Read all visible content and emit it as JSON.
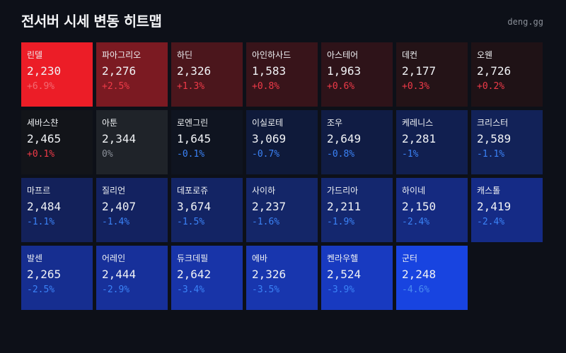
{
  "header": {
    "title": "전서버 시세 변동 히트맵",
    "brand": "deng.gg"
  },
  "chart_data": {
    "type": "heatmap",
    "title": "전서버 시세 변동 히트맵",
    "columns": 7,
    "colors": {
      "up": "#ef3a48",
      "down": "#3b82f6",
      "flat": "#8a8f98"
    },
    "items": [
      {
        "name": "린델",
        "value": "2,230",
        "change": "+6.9%",
        "pct": 6.9,
        "bg": "#ec1d27",
        "pctColor": "#f26a72"
      },
      {
        "name": "파아그리오",
        "value": "2,276",
        "change": "+2.5%",
        "pct": 2.5,
        "bg": "#7b1a22",
        "pctColor": "#ef3a48"
      },
      {
        "name": "하딘",
        "value": "2,326",
        "change": "+1.3%",
        "pct": 1.3,
        "bg": "#4b161c",
        "pctColor": "#ef3a48"
      },
      {
        "name": "아인하사드",
        "value": "1,583",
        "change": "+0.8%",
        "pct": 0.8,
        "bg": "#38141a",
        "pctColor": "#ef3a48"
      },
      {
        "name": "아스테어",
        "value": "1,963",
        "change": "+0.6%",
        "pct": 0.6,
        "bg": "#2e1319",
        "pctColor": "#ef3a48"
      },
      {
        "name": "데컨",
        "value": "2,177",
        "change": "+0.3%",
        "pct": 0.3,
        "bg": "#241317",
        "pctColor": "#ef3a48"
      },
      {
        "name": "오웬",
        "value": "2,726",
        "change": "+0.2%",
        "pct": 0.2,
        "bg": "#1f1216",
        "pctColor": "#ef3a48"
      },
      {
        "name": "세바스챤",
        "value": "2,465",
        "change": "+0.1%",
        "pct": 0.1,
        "bg": "#121419",
        "pctColor": "#ef3a48"
      },
      {
        "name": "아툰",
        "value": "2,344",
        "change": "0%",
        "pct": 0,
        "bg": "#1f2329",
        "pctColor": "#8a8f98"
      },
      {
        "name": "로엔그린",
        "value": "1,645",
        "change": "-0.1%",
        "pct": -0.1,
        "bg": "#0f1420",
        "pctColor": "#3b82f6"
      },
      {
        "name": "이실로테",
        "value": "3,069",
        "change": "-0.7%",
        "pct": -0.7,
        "bg": "#0f1a3a",
        "pctColor": "#3b82f6"
      },
      {
        "name": "조우",
        "value": "2,649",
        "change": "-0.8%",
        "pct": -0.8,
        "bg": "#101c44",
        "pctColor": "#3b82f6"
      },
      {
        "name": "케레니스",
        "value": "2,281",
        "change": "-1%",
        "pct": -1.0,
        "bg": "#111f50",
        "pctColor": "#3b82f6"
      },
      {
        "name": "크리스터",
        "value": "2,589",
        "change": "-1.1%",
        "pct": -1.1,
        "bg": "#122258",
        "pctColor": "#3b82f6"
      },
      {
        "name": "마프르",
        "value": "2,484",
        "change": "-1.1%",
        "pct": -1.1,
        "bg": "#13215a",
        "pctColor": "#3b82f6"
      },
      {
        "name": "질리언",
        "value": "2,407",
        "change": "-1.4%",
        "pct": -1.4,
        "bg": "#132260",
        "pctColor": "#3b82f6"
      },
      {
        "name": "데포로쥬",
        "value": "3,674",
        "change": "-1.5%",
        "pct": -1.5,
        "bg": "#132464",
        "pctColor": "#3b82f6"
      },
      {
        "name": "사이하",
        "value": "2,237",
        "change": "-1.6%",
        "pct": -1.6,
        "bg": "#142668",
        "pctColor": "#3b82f6"
      },
      {
        "name": "가드리아",
        "value": "2,211",
        "change": "-1.9%",
        "pct": -1.9,
        "bg": "#14276e",
        "pctColor": "#3b82f6"
      },
      {
        "name": "하이네",
        "value": "2,150",
        "change": "-2.4%",
        "pct": -2.4,
        "bg": "#152a80",
        "pctColor": "#3b82f6"
      },
      {
        "name": "캐스톨",
        "value": "2,419",
        "change": "-2.4%",
        "pct": -2.4,
        "bg": "#152b86",
        "pctColor": "#3b82f6"
      },
      {
        "name": "발센",
        "value": "2,265",
        "change": "-2.5%",
        "pct": -2.5,
        "bg": "#162e90",
        "pctColor": "#3b82f6"
      },
      {
        "name": "어레인",
        "value": "2,444",
        "change": "-2.9%",
        "pct": -2.9,
        "bg": "#17309a",
        "pctColor": "#3b82f6"
      },
      {
        "name": "듀크데필",
        "value": "2,642",
        "change": "-3.4%",
        "pct": -3.4,
        "bg": "#1834a8",
        "pctColor": "#3b82f6"
      },
      {
        "name": "에바",
        "value": "2,326",
        "change": "-3.5%",
        "pct": -3.5,
        "bg": "#1836ae",
        "pctColor": "#3b82f6"
      },
      {
        "name": "켄라우헬",
        "value": "2,524",
        "change": "-3.9%",
        "pct": -3.9,
        "bg": "#183ac0",
        "pctColor": "#3b82f6"
      },
      {
        "name": "군터",
        "value": "2,248",
        "change": "-4.6%",
        "pct": -4.6,
        "bg": "#1844e0",
        "pctColor": "#4a8cf0"
      }
    ]
  }
}
